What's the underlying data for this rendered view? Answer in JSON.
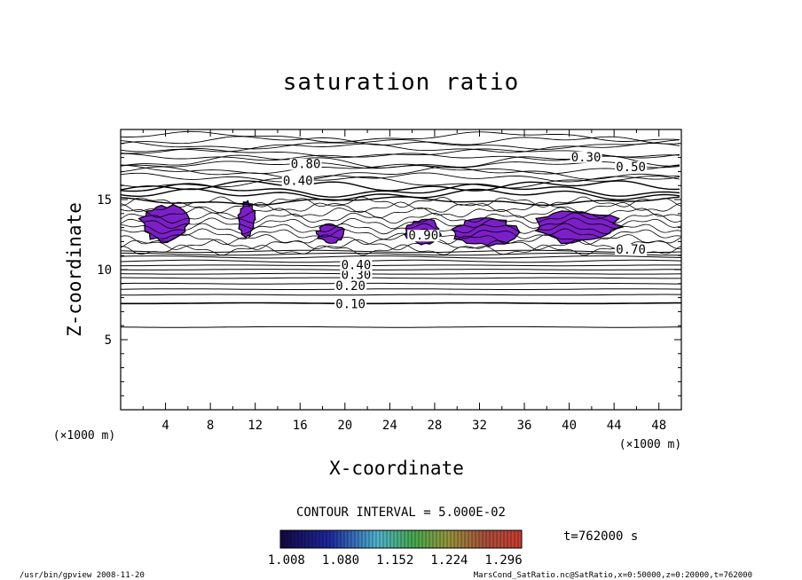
{
  "chart_data": {
    "type": "contour",
    "title": "saturation ratio",
    "xlabel": "X-coordinate",
    "ylabel": "Z-coordinate",
    "x_unit": "(×1000 m)",
    "y_unit": "(×1000 m)",
    "xlim": [
      0,
      50
    ],
    "ylim": [
      0,
      20
    ],
    "x_ticks": [
      "4",
      "8",
      "12",
      "16",
      "20",
      "24",
      "28",
      "32",
      "36",
      "40",
      "44",
      "48"
    ],
    "y_ticks": [
      "5",
      "10",
      "15"
    ],
    "contour_interval": "CONTOUR INTERVAL = 5.000E-02",
    "time": "t=762000 s",
    "contour_labels": [
      "0.10",
      "0.20",
      "0.30",
      "0.40",
      "0.80",
      "0.30",
      "0.50",
      "0.40",
      "0.90",
      "0.70"
    ],
    "horizontal_contours_z": [
      5.9,
      7.6,
      8.2,
      8.6,
      9.0,
      9.4,
      9.7,
      10.0,
      10.3,
      10.6,
      10.9,
      11.1,
      11.3
    ],
    "supersaturated_regions": [
      {
        "x": [
          1.8,
          6.0
        ],
        "z": [
          12.0,
          14.6
        ]
      },
      {
        "x": [
          10.5,
          12.0
        ],
        "z": [
          12.3,
          14.8
        ]
      },
      {
        "x": [
          17.5,
          20.0
        ],
        "z": [
          11.9,
          13.2
        ]
      },
      {
        "x": [
          25.5,
          28.5
        ],
        "z": [
          11.8,
          13.6
        ]
      },
      {
        "x": [
          29.5,
          35.5
        ],
        "z": [
          11.7,
          13.6
        ]
      },
      {
        "x": [
          37.0,
          44.5
        ],
        "z": [
          11.9,
          14.2
        ]
      }
    ],
    "colorbar": {
      "ticks": [
        "1.008",
        "1.080",
        "1.152",
        "1.224",
        "1.296"
      ],
      "min": 1.0,
      "max": 1.32
    },
    "colors": {
      "fill": "#7b1fc8",
      "line": "#000000",
      "colorbar_low": "#1a0b4a",
      "colorbar_high": "#c83a2a"
    }
  },
  "footer": {
    "left": "/usr/bin/gpview  2008-11-20",
    "right": "MarsCond_SatRatio.nc@SatRatio,x=0:50000,z=0:20000,t=762000"
  }
}
